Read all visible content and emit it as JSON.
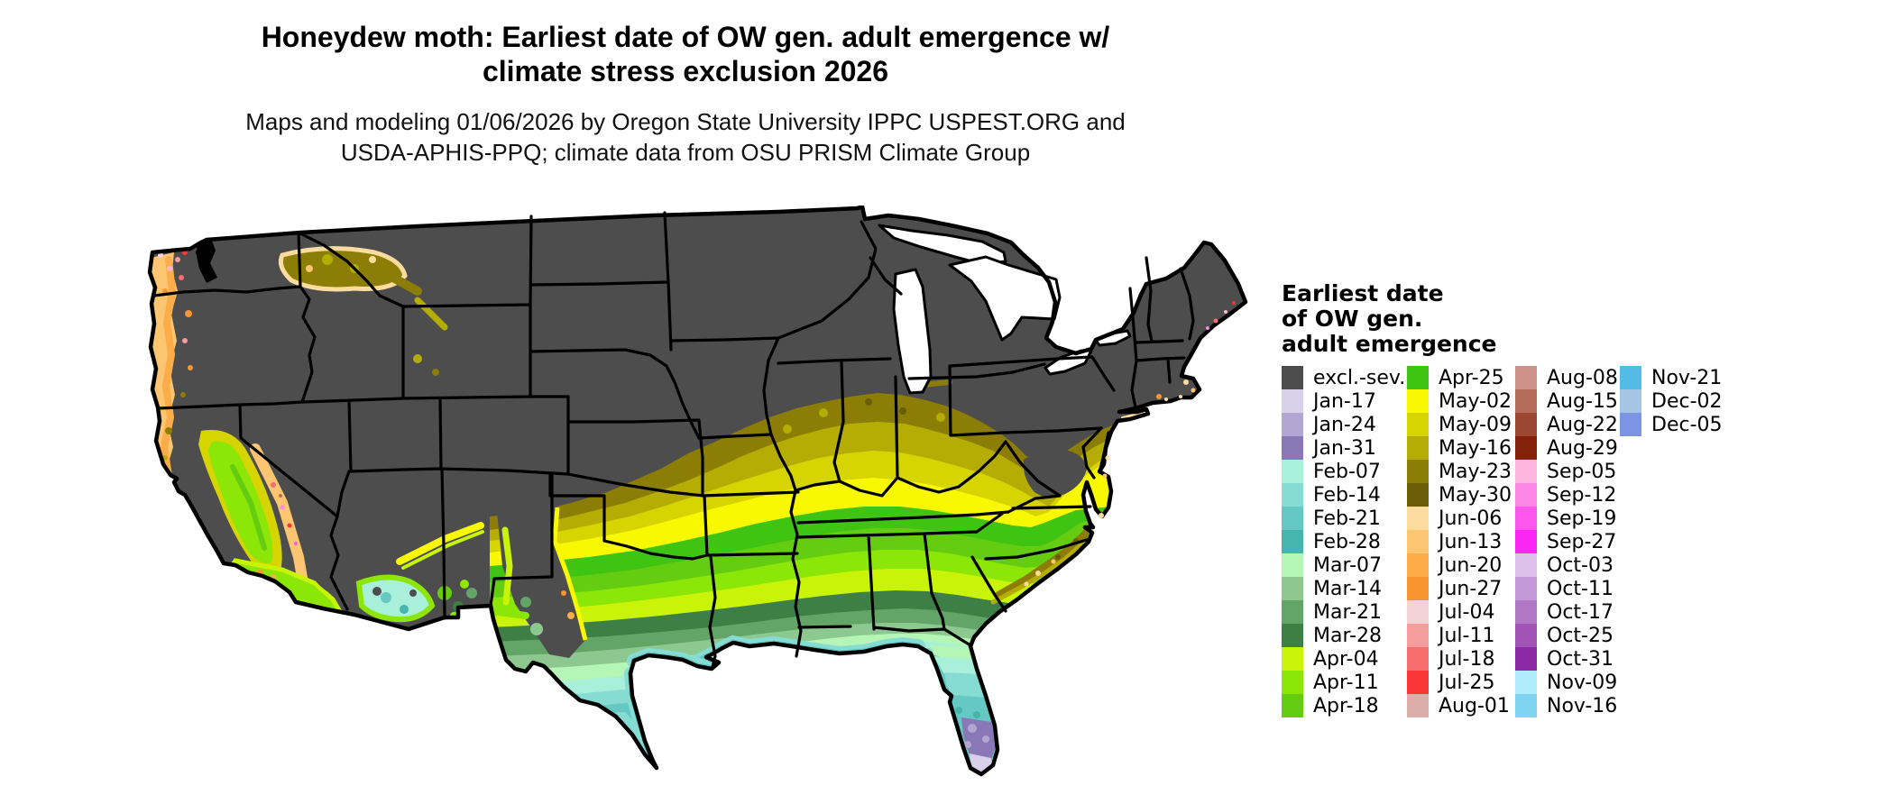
{
  "title": {
    "line1": "Honeydew moth: Earliest date of OW gen. adult emergence w/",
    "line2": "climate stress exclusion 2026"
  },
  "subtitle": {
    "line1": "Maps and modeling 01/06/2026 by Oregon State University IPPC USPEST.ORG and",
    "line2": "USDA-APHIS-PPQ; climate data from OSU PRISM Climate Group"
  },
  "legend": {
    "title_lines": [
      "Earliest date",
      "of OW gen.",
      "adult emergence"
    ],
    "columns": [
      [
        "excl.-sev.",
        "Jan-17",
        "Jan-24",
        "Jan-31",
        "Feb-07",
        "Feb-14",
        "Feb-21",
        "Feb-28",
        "Mar-07",
        "Mar-14",
        "Mar-21",
        "Mar-28",
        "Apr-04",
        "Apr-11",
        "Apr-18"
      ],
      [
        "Apr-25",
        "May-02",
        "May-09",
        "May-16",
        "May-23",
        "May-30",
        "Jun-06",
        "Jun-13",
        "Jun-20",
        "Jun-27",
        "Jul-04",
        "Jul-11",
        "Jul-18",
        "Jul-25",
        "Aug-01"
      ],
      [
        "Aug-08",
        "Aug-15",
        "Aug-22",
        "Aug-29",
        "Sep-05",
        "Sep-12",
        "Sep-19",
        "Sep-27",
        "Oct-03",
        "Oct-11",
        "Oct-17",
        "Oct-25",
        "Oct-31",
        "Nov-09",
        "Nov-16"
      ],
      [
        "Nov-21",
        "Dec-02",
        "Dec-05"
      ]
    ]
  },
  "palette": {
    "excl.-sev.": "#4d4d4d",
    "Jan-17": "#d9d0ea",
    "Jan-24": "#b3a6d2",
    "Jan-31": "#8a77b5",
    "Feb-07": "#a8f0da",
    "Feb-14": "#86dcd2",
    "Feb-21": "#66c8c2",
    "Feb-28": "#46b5ae",
    "Mar-07": "#b5f5b5",
    "Mar-14": "#8cc88f",
    "Mar-21": "#63a567",
    "Mar-28": "#3d7f45",
    "Apr-04": "#c9f407",
    "Apr-11": "#8ce607",
    "Apr-18": "#64cc11",
    "Apr-25": "#3fc414",
    "May-02": "#f8f800",
    "May-09": "#d6d401",
    "May-16": "#b5ad04",
    "May-23": "#8c7d07",
    "May-30": "#6b5d07",
    "Jun-06": "#fcdc9e",
    "Jun-13": "#fcc571",
    "Jun-20": "#fcad49",
    "Jun-27": "#f99531",
    "Jul-04": "#f5d2d5",
    "Jul-11": "#f59d9d",
    "Jul-18": "#f56d6d",
    "Jul-25": "#f93737",
    "Aug-01": "#dcaea9",
    "Aug-08": "#cc9289",
    "Aug-15": "#b56d5b",
    "Aug-22": "#9c4731",
    "Aug-29": "#84210d",
    "Sep-05": "#fcb5dc",
    "Sep-12": "#fc86e4",
    "Sep-19": "#fc56ec",
    "Sep-27": "#fc26f4",
    "Oct-03": "#ddc1ec",
    "Oct-11": "#c599d9",
    "Oct-17": "#b179c5",
    "Oct-25": "#a055b5",
    "Oct-31": "#8c29a5",
    "Nov-09": "#b1ecfc",
    "Nov-16": "#7fd5f0",
    "Nov-21": "#52bce4",
    "Dec-02": "#a5c5e4",
    "Dec-05": "#7b94e4"
  },
  "map": {
    "region": "Contiguous United States",
    "kind": "choropleth of earliest overwintering-generation adult emergence date"
  }
}
